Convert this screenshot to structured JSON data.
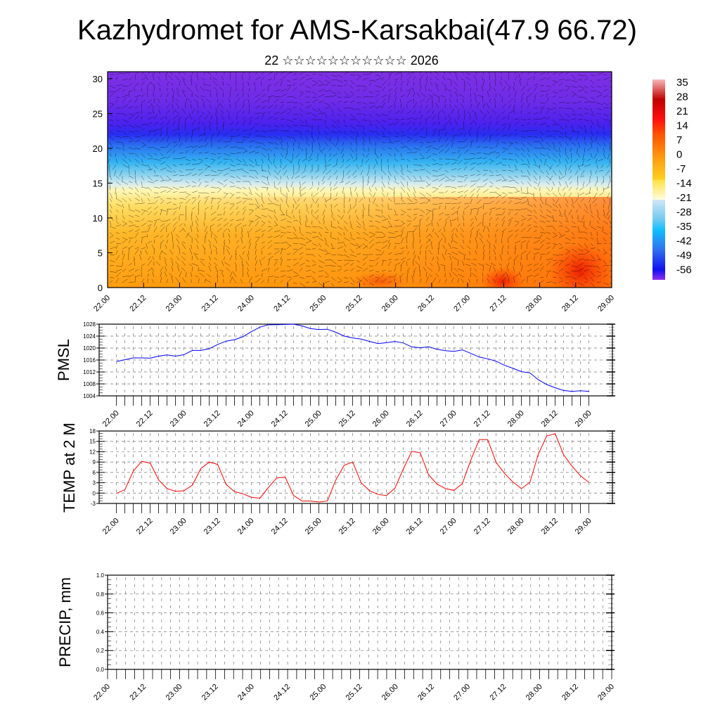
{
  "title": "Kazhydromet for AMS-Karsakbai(47.9 66.72)",
  "subtitle": "22 ☆☆☆☆☆☆☆☆☆☆☆ 2026",
  "time_labels": [
    "22.00",
    "22.12",
    "23.00",
    "23.12",
    "24.00",
    "24.12",
    "25.00",
    "25.12",
    "26.00",
    "26.12",
    "27.00",
    "27.12",
    "28.00",
    "28.12",
    "29.00"
  ],
  "colorbar": {
    "labels": [
      "35",
      "28",
      "21",
      "14",
      "7",
      "0",
      "-7",
      "-14",
      "-21",
      "-28",
      "-35",
      "-42",
      "-49",
      "-56"
    ]
  },
  "chart_data": [
    {
      "type": "heatmap",
      "name": "temperature-wind-cross-section",
      "ylabel": "",
      "yticks": [
        "0",
        "5",
        "10",
        "15",
        "20",
        "25",
        "30"
      ],
      "ylim": [
        0,
        31
      ],
      "xlim": [
        "22.00",
        "29.00"
      ],
      "color_range": [
        -56,
        35
      ],
      "overlay": "wind vectors"
    },
    {
      "type": "line",
      "name": "pmsl",
      "ylabel": "PMSL",
      "color": "#0000ff",
      "ylim": [
        1004,
        1028
      ],
      "yticks": [
        "1004",
        "1008",
        "1012",
        "1016",
        "1020",
        "1024",
        "1028"
      ],
      "x_step_hours": 3,
      "values": [
        1015.5,
        1016.1,
        1016.7,
        1016.7,
        1016.6,
        1017.3,
        1017.7,
        1017.3,
        1017.8,
        1019.2,
        1019.2,
        1019.8,
        1021.2,
        1022.3,
        1022.8,
        1023.8,
        1025.5,
        1027.0,
        1027.8,
        1027.8,
        1027.9,
        1028.0,
        1027.4,
        1026.5,
        1026.2,
        1026.3,
        1025.3,
        1024.0,
        1023.4,
        1023.0,
        1022.2,
        1021.5,
        1021.8,
        1022.2,
        1021.7,
        1020.4,
        1020.1,
        1020.4,
        1019.6,
        1019.1,
        1018.9,
        1019.4,
        1018.2,
        1017.0,
        1016.4,
        1015.6,
        1014.2,
        1013.2,
        1012.1,
        1011.7,
        1009.4,
        1007.8,
        1006.7,
        1005.8,
        1005.5,
        1005.7,
        1005.5
      ]
    },
    {
      "type": "line",
      "name": "temp2m",
      "ylabel": "TEMP at 2 M",
      "color": "#ff0000",
      "ylim": [
        -3,
        18
      ],
      "yticks": [
        "-3",
        "0",
        "3",
        "6",
        "9",
        "12",
        "15",
        "18"
      ],
      "x_step_hours": 3,
      "values": [
        -0.1,
        1.0,
        6.4,
        9.2,
        8.7,
        3.8,
        1.3,
        0.5,
        0.7,
        2.3,
        7.1,
        9.0,
        8.3,
        2.5,
        0.4,
        -0.2,
        -1.2,
        -1.5,
        1.6,
        4.4,
        4.6,
        -0.7,
        -2.3,
        -2.3,
        -2.6,
        -2.3,
        3.8,
        8.1,
        9.0,
        3.0,
        0.7,
        -0.4,
        -0.7,
        1.4,
        7.0,
        12.1,
        11.7,
        5.3,
        2.6,
        1.3,
        0.8,
        2.8,
        9.6,
        15.5,
        15.5,
        8.9,
        5.7,
        3.2,
        1.3,
        3.1,
        11.3,
        16.6,
        17.2,
        11.1,
        7.8,
        5.0,
        3.1
      ]
    },
    {
      "type": "line",
      "name": "precip",
      "ylabel": "PRECIP, mm",
      "ylim": [
        0,
        1
      ],
      "yticks": [
        "0.0",
        "0.2",
        "0.4",
        "0.6",
        "0.8",
        "1.0"
      ],
      "values": []
    }
  ]
}
